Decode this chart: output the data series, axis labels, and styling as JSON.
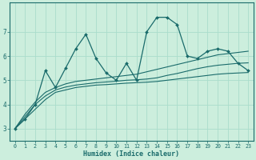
{
  "xlabel": "Humidex (Indice chaleur)",
  "background_color": "#cceedd",
  "line_color": "#1a6b6b",
  "x_values": [
    0,
    1,
    2,
    3,
    4,
    5,
    6,
    7,
    8,
    9,
    10,
    11,
    12,
    13,
    14,
    15,
    16,
    17,
    18,
    19,
    20,
    21,
    22,
    23
  ],
  "series1": [
    3.0,
    3.4,
    4.0,
    5.4,
    4.7,
    5.5,
    6.3,
    6.9,
    5.9,
    5.3,
    5.0,
    5.7,
    5.0,
    7.0,
    7.6,
    7.6,
    7.3,
    6.0,
    5.9,
    6.2,
    6.3,
    6.2,
    5.7,
    5.4
  ],
  "series2": [
    3.0,
    3.4,
    3.8,
    4.2,
    4.5,
    4.6,
    4.7,
    4.75,
    4.8,
    4.82,
    4.85,
    4.88,
    4.9,
    4.92,
    4.95,
    5.0,
    5.05,
    5.1,
    5.15,
    5.2,
    5.25,
    5.28,
    5.3,
    5.32
  ],
  "series3": [
    3.0,
    3.5,
    4.0,
    4.35,
    4.6,
    4.72,
    4.8,
    4.85,
    4.9,
    4.93,
    4.96,
    5.0,
    5.02,
    5.05,
    5.1,
    5.2,
    5.28,
    5.38,
    5.48,
    5.56,
    5.62,
    5.66,
    5.7,
    5.72
  ],
  "series4": [
    3.0,
    3.6,
    4.1,
    4.5,
    4.7,
    4.85,
    4.95,
    5.0,
    5.05,
    5.1,
    5.15,
    5.2,
    5.25,
    5.35,
    5.45,
    5.55,
    5.65,
    5.75,
    5.85,
    5.95,
    6.05,
    6.1,
    6.15,
    6.2
  ],
  "ylim": [
    2.5,
    8.2
  ],
  "yticks": [
    3,
    4,
    5,
    6,
    7
  ],
  "xlim": [
    -0.5,
    23.5
  ],
  "grid_color": "#aaddcc"
}
